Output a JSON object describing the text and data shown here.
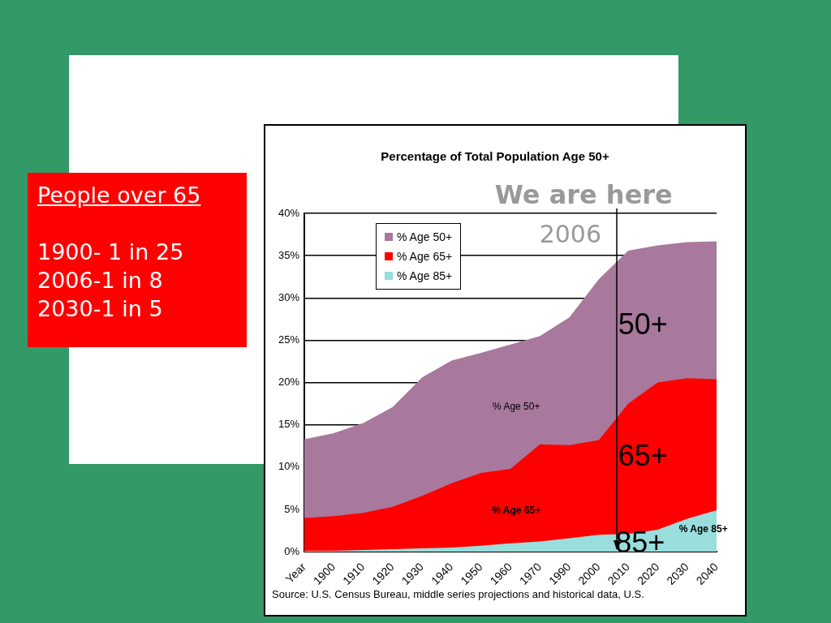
{
  "chart_data": {
    "type": "area",
    "title": "Percentage of Total Population Age 50+",
    "categories": [
      "Year",
      "1900",
      "1910",
      "1920",
      "1930",
      "1940",
      "1950",
      "1960",
      "1970",
      "1990",
      "2000",
      "2010",
      "2020",
      "2030",
      "2040"
    ],
    "series": [
      {
        "name": "% Age 50+",
        "color": "#a8799c",
        "values": [
          13.3,
          14.0,
          15.2,
          17.1,
          20.6,
          22.6,
          23.5,
          24.5,
          25.5,
          27.7,
          32.2,
          35.6,
          36.2,
          36.6,
          36.7
        ]
      },
      {
        "name": "% Age 65+",
        "color": "#ff0000",
        "values": [
          4.0,
          4.2,
          4.6,
          5.3,
          6.6,
          8.1,
          9.3,
          9.8,
          12.7,
          12.6,
          13.2,
          17.5,
          20.0,
          20.5,
          20.4
        ]
      },
      {
        "name": "% Age 85+",
        "color": "#99dddd",
        "values": [
          0.1,
          0.1,
          0.2,
          0.3,
          0.4,
          0.5,
          0.7,
          1.0,
          1.2,
          1.6,
          2.0,
          2.1,
          2.6,
          3.9,
          4.9
        ]
      }
    ],
    "ylim": [
      0,
      40
    ],
    "yticks": [
      {
        "value": 0,
        "label": "0%"
      },
      {
        "value": 5,
        "label": "5%"
      },
      {
        "value": 10,
        "label": "10%"
      },
      {
        "value": 15,
        "label": "15%"
      },
      {
        "value": 20,
        "label": "20%"
      },
      {
        "value": 25,
        "label": "25%"
      },
      {
        "value": 30,
        "label": "30%"
      },
      {
        "value": 35,
        "label": "35%"
      },
      {
        "value": 40,
        "label": "40%"
      }
    ],
    "grid": "y",
    "legend": "top left",
    "annotations": [
      "We are here",
      "2006",
      "50+",
      "65+",
      "85+",
      "% Age 50+",
      "% Age 65+",
      "% Age 85+",
      "Source: U.S. Census Bureau, middle series projections and historical data, U.S.",
      "People over 65",
      "1900- 1 in 25",
      "2006-1 in 8",
      "2030-1 in 5"
    ]
  }
}
